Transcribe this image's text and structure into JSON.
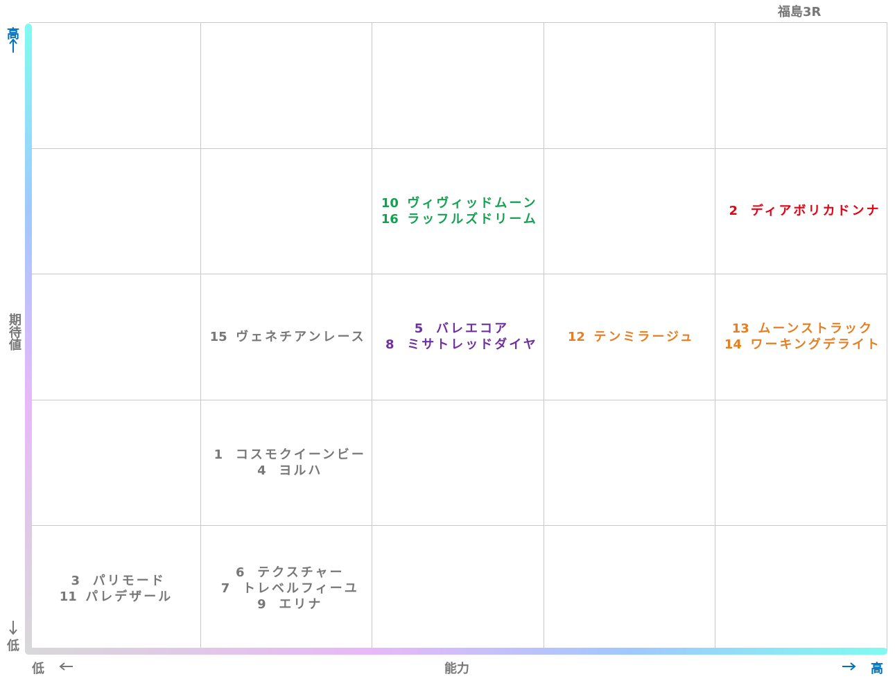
{
  "title": "福島3R",
  "y_axis": {
    "high": "高",
    "label": "期待値",
    "low": "低"
  },
  "x_axis": {
    "low": "低",
    "label": "能力",
    "high": "高"
  },
  "grid": [
    [
      {
        "color": "#777777",
        "entries": []
      },
      {
        "color": "#777777",
        "entries": []
      },
      {
        "color": "#777777",
        "entries": []
      },
      {
        "color": "#777777",
        "entries": []
      },
      {
        "color": "#777777",
        "entries": []
      }
    ],
    [
      {
        "color": "#777777",
        "entries": []
      },
      {
        "color": "#777777",
        "entries": []
      },
      {
        "color": "#13a050",
        "entries": [
          {
            "num": 10,
            "name": "ヴィヴィッドムーン"
          },
          {
            "num": 16,
            "name": "ラッフルズドリーム"
          }
        ]
      },
      {
        "color": "#777777",
        "entries": []
      },
      {
        "color": "#e60012",
        "entries": [
          {
            "num": 2,
            "name": "ディアボリカドンナ"
          }
        ]
      }
    ],
    [
      {
        "color": "#777777",
        "entries": []
      },
      {
        "color": "#777777",
        "entries": [
          {
            "num": 15,
            "name": "ヴェネチアンレース"
          }
        ]
      },
      {
        "color": "#7030a0",
        "entries": [
          {
            "num": 5,
            "name": "バレエコア"
          },
          {
            "num": 8,
            "name": "ミサトレッドダイヤ"
          }
        ]
      },
      {
        "color": "#e67e22",
        "entries": [
          {
            "num": 12,
            "name": "テンミラージュ"
          }
        ]
      },
      {
        "color": "#e67e22",
        "entries": [
          {
            "num": 13,
            "name": "ムーンストラック"
          },
          {
            "num": 14,
            "name": "ワーキングデライト"
          }
        ]
      }
    ],
    [
      {
        "color": "#777777",
        "entries": []
      },
      {
        "color": "#777777",
        "entries": [
          {
            "num": 1,
            "name": "コスモクイーンビー"
          },
          {
            "num": 4,
            "name": "ヨルハ"
          }
        ]
      },
      {
        "color": "#777777",
        "entries": []
      },
      {
        "color": "#777777",
        "entries": []
      },
      {
        "color": "#777777",
        "entries": []
      }
    ],
    [
      {
        "color": "#777777",
        "entries": [
          {
            "num": 3,
            "name": "パリモード"
          },
          {
            "num": 11,
            "name": "パレデザール"
          }
        ]
      },
      {
        "color": "#777777",
        "entries": [
          {
            "num": 6,
            "name": "テクスチャー"
          },
          {
            "num": 7,
            "name": "トレベルフィーユ"
          },
          {
            "num": 9,
            "name": "エリナ"
          }
        ]
      },
      {
        "color": "#777777",
        "entries": []
      },
      {
        "color": "#777777",
        "entries": []
      },
      {
        "color": "#777777",
        "entries": []
      }
    ]
  ]
}
